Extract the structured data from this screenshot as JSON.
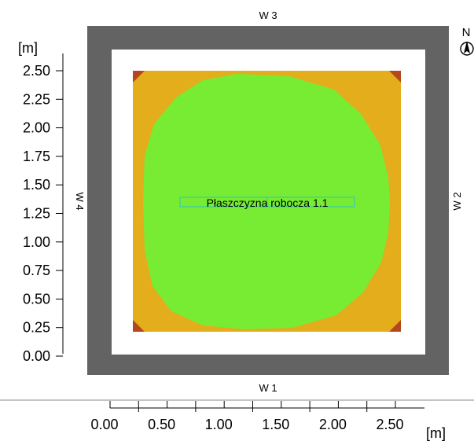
{
  "unit_label": "[m]",
  "walls": {
    "front": "W 1",
    "right": "W 2",
    "back": "W 3",
    "left": "W 4"
  },
  "north_label": "N",
  "workplane_label": "Płaszczyzna robocza 1.1",
  "y_ticks": [
    "0.00",
    "0.25",
    "0.50",
    "0.75",
    "1.00",
    "1.25",
    "1.50",
    "1.75",
    "2.00",
    "2.25",
    "2.50"
  ],
  "x_ticks": [
    "0.00",
    "0.50",
    "1.00",
    "1.50",
    "2.00",
    "2.50"
  ],
  "colors": {
    "wall": "#636363",
    "workplane": "#e3ad1c",
    "high_illuminance": "#77ec33",
    "corner": "#b4471c"
  }
}
